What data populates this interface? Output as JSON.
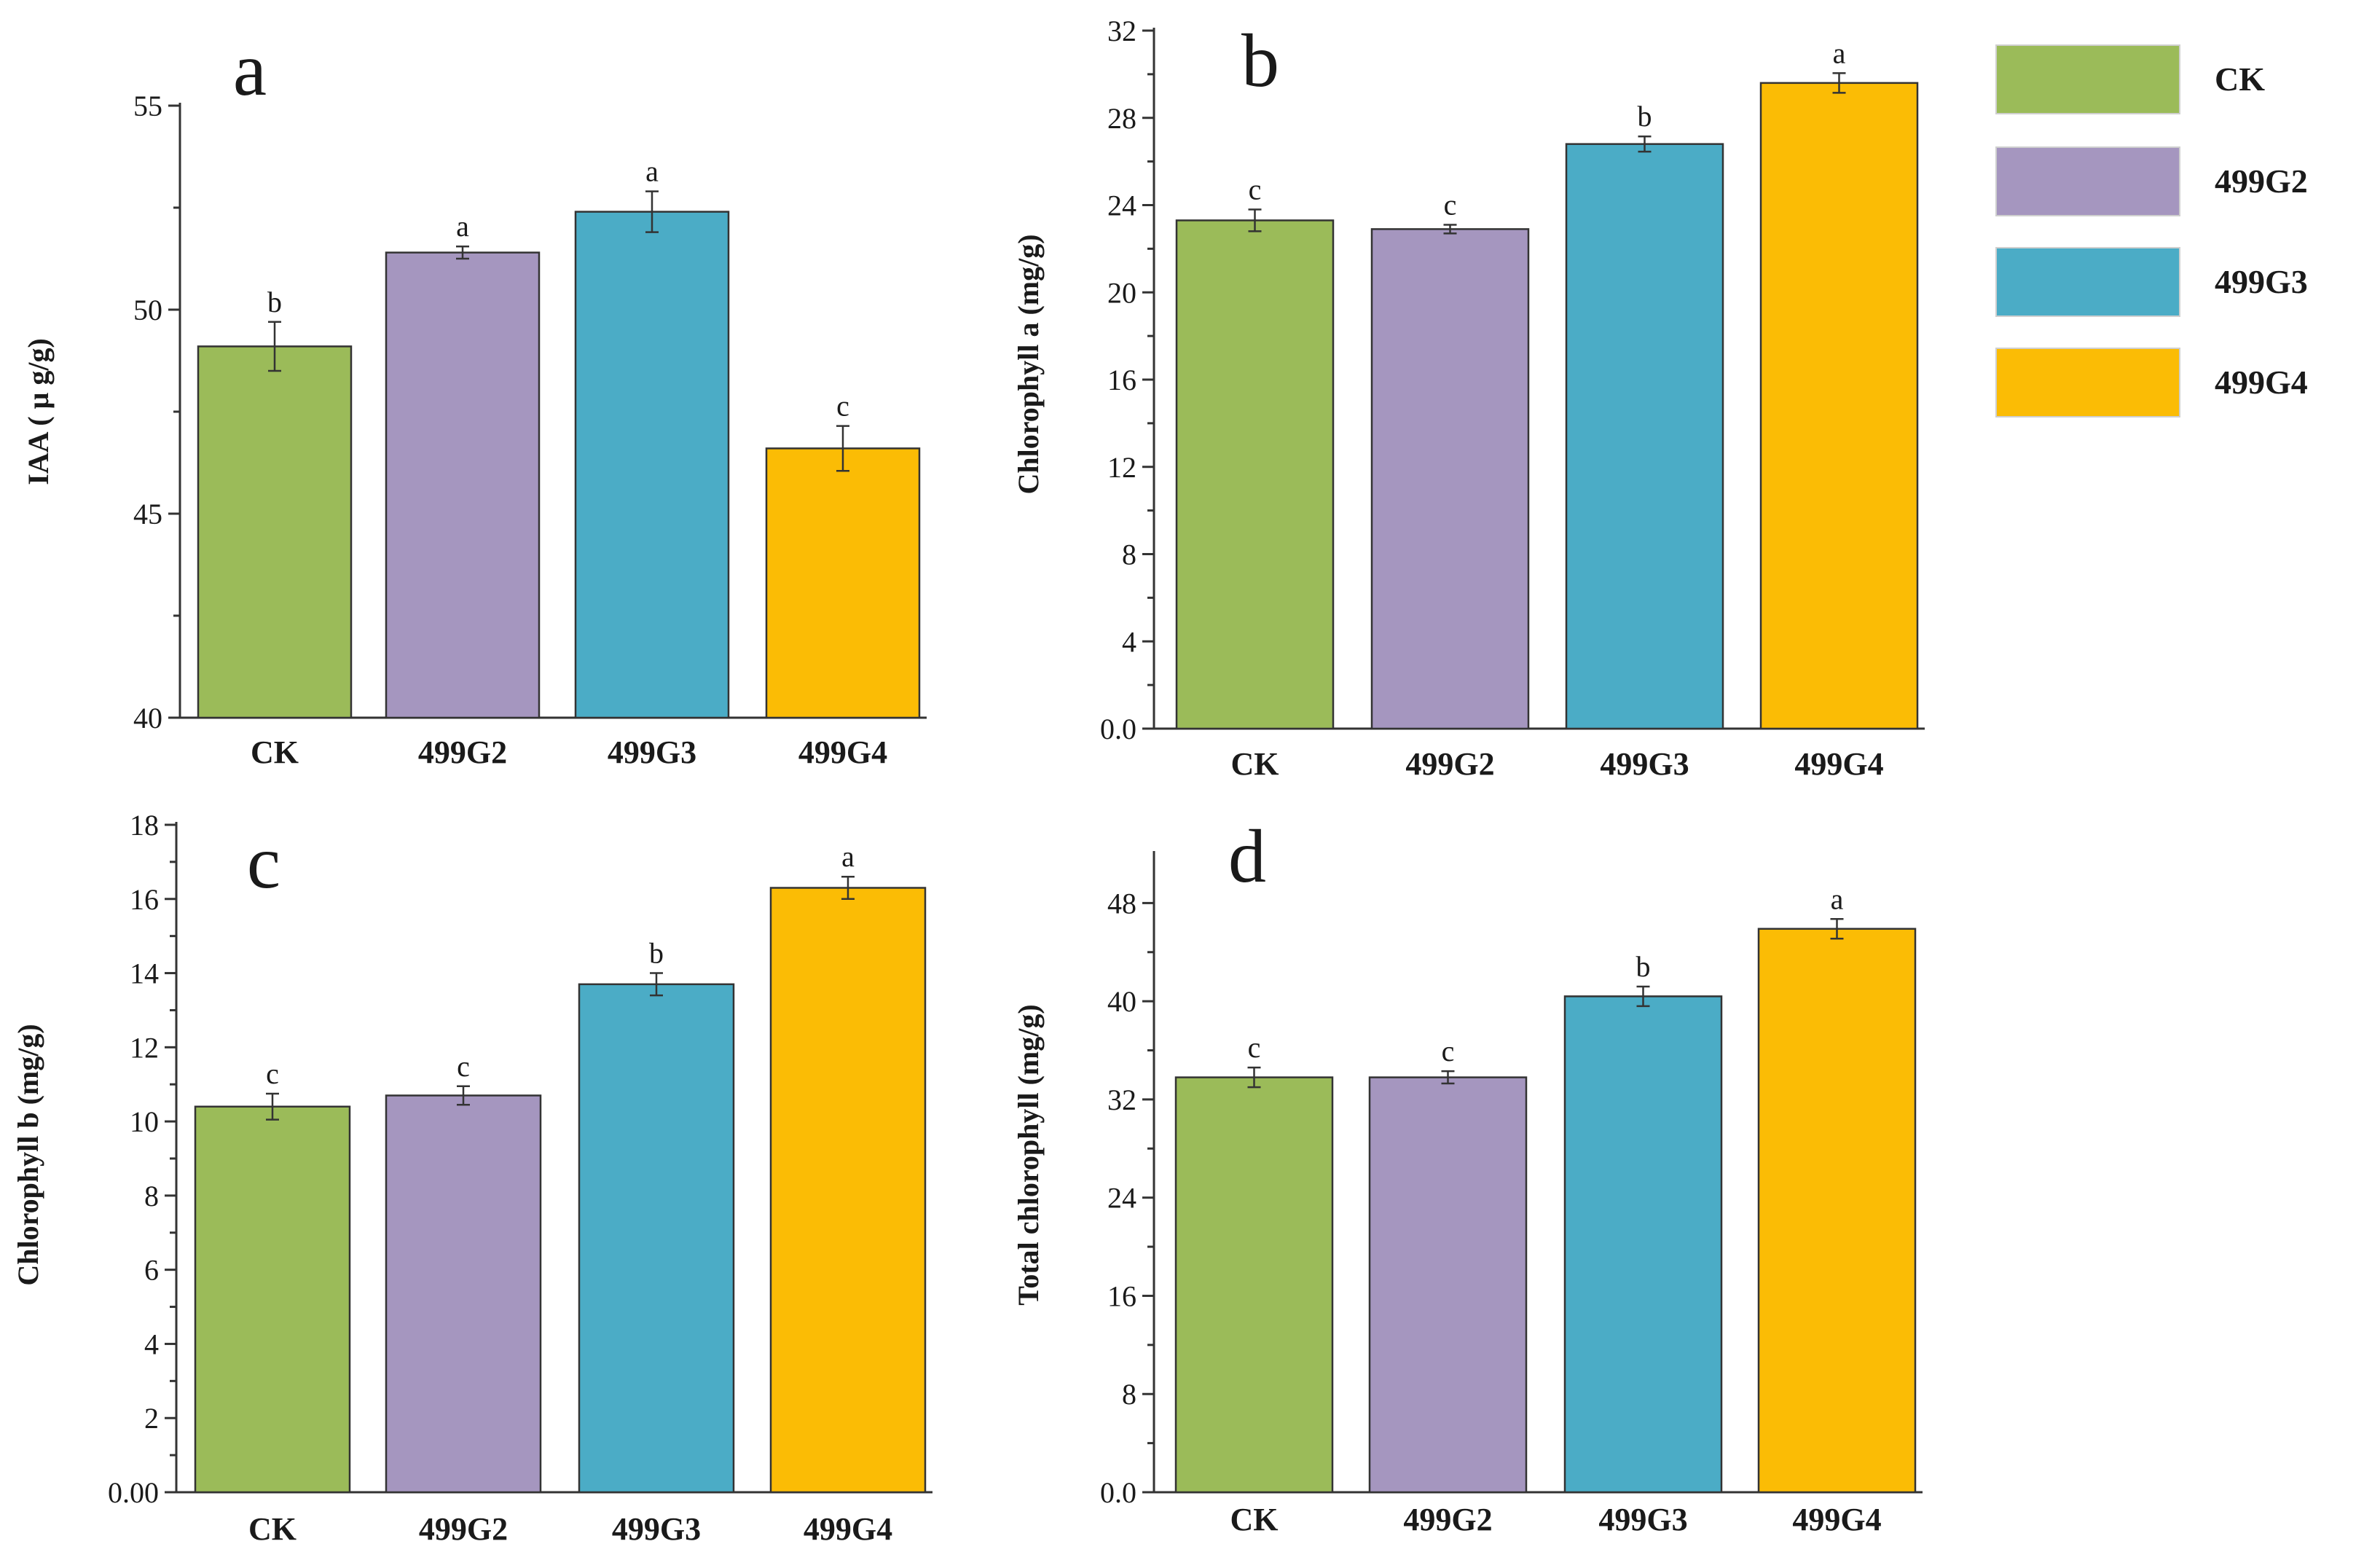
{
  "chart_data": [
    {
      "type": "bar",
      "panel": "a",
      "title": "",
      "xlabel": "",
      "ylabel": "IAA ( μ g/g)",
      "ylim": [
        40,
        55
      ],
      "yticks": [
        "40",
        "45",
        "50",
        "55"
      ],
      "categories": [
        "CK",
        "499G2",
        "499G3",
        "499G4"
      ],
      "values": [
        49.1,
        51.4,
        52.4,
        46.6
      ],
      "errors": [
        0.6,
        0.15,
        0.5,
        0.55
      ],
      "significance": [
        "b",
        "a",
        "a",
        "c"
      ]
    },
    {
      "type": "bar",
      "panel": "b",
      "title": "",
      "xlabel": "",
      "ylabel": "Chlorophyll a (mg/g)",
      "ylim": [
        0,
        32
      ],
      "yticks": [
        "0.0",
        "4",
        "8",
        "12",
        "16",
        "20",
        "24",
        "28",
        "32"
      ],
      "categories": [
        "CK",
        "499G2",
        "499G3",
        "499G4"
      ],
      "values": [
        23.3,
        22.9,
        26.8,
        29.6
      ],
      "errors": [
        0.5,
        0.2,
        0.35,
        0.45
      ],
      "significance": [
        "c",
        "c",
        "b",
        "a"
      ]
    },
    {
      "type": "bar",
      "panel": "c",
      "title": "",
      "xlabel": "",
      "ylabel": "Chlorophyll b (mg/g)",
      "ylim": [
        0,
        18
      ],
      "yticks": [
        "0.00",
        "2",
        "4",
        "6",
        "8",
        "10",
        "12",
        "14",
        "16",
        "18"
      ],
      "categories": [
        "CK",
        "499G2",
        "499G3",
        "499G4"
      ],
      "values": [
        10.4,
        10.7,
        13.7,
        16.3
      ],
      "errors": [
        0.35,
        0.25,
        0.3,
        0.3
      ],
      "significance": [
        "c",
        "c",
        "b",
        "a"
      ]
    },
    {
      "type": "bar",
      "panel": "d",
      "title": "",
      "xlabel": "",
      "ylabel": "Total chlorophyll (mg/g)",
      "ylim": [
        0,
        52
      ],
      "yticks": [
        "0.0",
        "8",
        "16",
        "24",
        "32",
        "40",
        "48"
      ],
      "categories": [
        "CK",
        "499G2",
        "499G3",
        "499G4"
      ],
      "values": [
        33.8,
        33.8,
        40.4,
        45.9
      ],
      "errors": [
        0.8,
        0.5,
        0.8,
        0.8
      ],
      "significance": [
        "c",
        "c",
        "b",
        "a"
      ]
    }
  ],
  "legend": {
    "position": "top-right",
    "items": [
      {
        "label": "CK",
        "color": "#9bbb59"
      },
      {
        "label": "499G2",
        "color": "#a596bf"
      },
      {
        "label": "499G3",
        "color": "#4bacc6"
      },
      {
        "label": "499G4",
        "color": "#fbbc05"
      }
    ]
  },
  "colors": {
    "CK": "#9bbb59",
    "499G2": "#a596bf",
    "499G3": "#4bacc6",
    "499G4": "#fbbc05",
    "axis": "#333333"
  }
}
